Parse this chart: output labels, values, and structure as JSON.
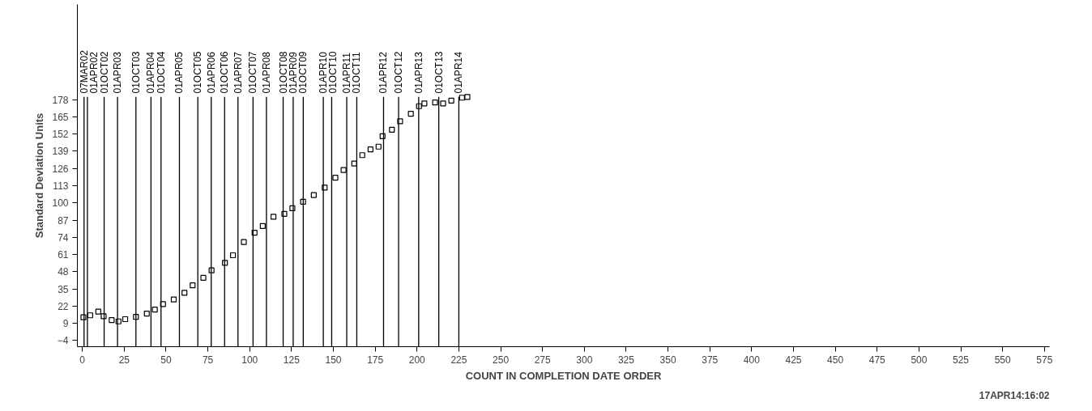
{
  "chart_data": {
    "type": "scatter",
    "xlabel": "COUNT IN COMPLETION DATE ORDER",
    "ylabel": "Standard Deviation Units",
    "marker": "square",
    "grid": false,
    "xlim": [
      -3,
      578
    ],
    "ylim": [
      -8.7,
      250
    ],
    "xticks": [
      0,
      25,
      50,
      75,
      100,
      125,
      150,
      175,
      200,
      225,
      250,
      275,
      300,
      325,
      350,
      375,
      400,
      425,
      450,
      475,
      500,
      525,
      550,
      575
    ],
    "yticks": [
      -4,
      9,
      22,
      35,
      48,
      61,
      74,
      87,
      100,
      113,
      126,
      139,
      152,
      165,
      178
    ],
    "x": [
      0.6,
      4.7,
      9.5,
      12.7,
      17.5,
      21.6,
      25.6,
      32,
      38.5,
      43.3,
      48.2,
      54.6,
      61,
      65.9,
      72.3,
      77.2,
      85.2,
      90,
      96.5,
      102.9,
      107.8,
      114.2,
      120.7,
      125.5,
      131.9,
      138.3,
      144.8,
      151.2,
      156.1,
      162.5,
      167.3,
      172.2,
      177,
      179.4,
      185,
      189.9,
      196.3,
      201.2,
      204.4,
      210.8,
      215.6,
      220.5,
      226.9,
      230.1
    ],
    "series": [
      {
        "color": "#000000",
        "values": [
          13.5,
          15.0,
          17.8,
          14.3,
          11.4,
          10.4,
          12.1,
          13.8,
          16.3,
          19.3,
          23.5,
          27.0,
          32.0,
          37.7,
          43.3,
          49.0,
          54.7,
          60.4,
          70.4,
          77.5,
          82.5,
          89.5,
          91.7,
          95.9,
          100.9,
          105.9,
          111.5,
          119.0,
          124.8,
          129.7,
          136.1,
          140.4,
          142.5,
          150.4,
          155.3,
          161.7,
          167.4,
          173.1,
          175.2,
          175.9,
          175.2,
          177.3,
          179.5,
          180.1
        ]
      }
    ],
    "ref_lines": [
      {
        "axis": "x",
        "value": 1,
        "label": "07MAR02"
      },
      {
        "axis": "x",
        "value": 3,
        "label": "01APR02"
      },
      {
        "axis": "x",
        "value": 13,
        "label": "01OCT02"
      },
      {
        "axis": "x",
        "value": 21,
        "label": "01APR03"
      },
      {
        "axis": "x",
        "value": 32,
        "label": "01OCT03"
      },
      {
        "axis": "x",
        "value": 41,
        "label": "01APR04"
      },
      {
        "axis": "x",
        "value": 47,
        "label": "01OCT04"
      },
      {
        "axis": "x",
        "value": 58,
        "label": "01APR05"
      },
      {
        "axis": "x",
        "value": 69,
        "label": "01OCT05"
      },
      {
        "axis": "x",
        "value": 77,
        "label": "01APR06"
      },
      {
        "axis": "x",
        "value": 85,
        "label": "01OCT06"
      },
      {
        "axis": "x",
        "value": 93,
        "label": "01APR07"
      },
      {
        "axis": "x",
        "value": 102,
        "label": "01OCT07"
      },
      {
        "axis": "x",
        "value": 110,
        "label": "01APR08"
      },
      {
        "axis": "x",
        "value": 120,
        "label": "01OCT08"
      },
      {
        "axis": "x",
        "value": 126,
        "label": "01APR09"
      },
      {
        "axis": "x",
        "value": 132,
        "label": "01OCT09"
      },
      {
        "axis": "x",
        "value": 144,
        "label": "01APR10"
      },
      {
        "axis": "x",
        "value": 149,
        "label": "01OCT10"
      },
      {
        "axis": "x",
        "value": 158,
        "label": "01APR11"
      },
      {
        "axis": "x",
        "value": 164,
        "label": "01OCT11"
      },
      {
        "axis": "x",
        "value": 180,
        "label": "01APR12"
      },
      {
        "axis": "x",
        "value": 189,
        "label": "01OCT12"
      },
      {
        "axis": "x",
        "value": 201,
        "label": "01APR13"
      },
      {
        "axis": "x",
        "value": 213,
        "label": "01OCT13"
      },
      {
        "axis": "x",
        "value": 225,
        "label": "01APR14"
      }
    ],
    "annotations": [
      "17APR14:16:02"
    ]
  }
}
